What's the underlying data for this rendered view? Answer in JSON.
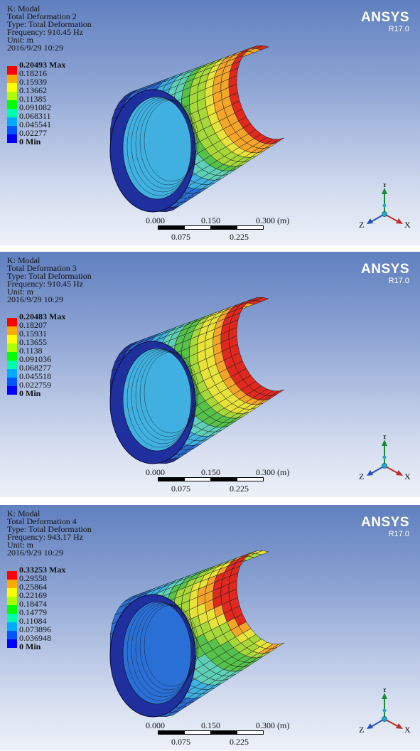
{
  "brand": "ANSYS",
  "release": "R17.0",
  "colors": {
    "legend": [
      "#0000ff",
      "#0055ff",
      "#00aaff",
      "#00ffaa",
      "#00ff00",
      "#aaff00",
      "#ffff00",
      "#ffaa00",
      "#ff0000"
    ],
    "background_top": "#5f7fbf",
    "background_bottom": "#edf1f8"
  },
  "scale_bar": {
    "ticks_top": [
      "0.000",
      "0.150",
      "0.300 (m)"
    ],
    "ticks_bottom": [
      "0.075",
      "0.225"
    ]
  },
  "triad": {
    "y": "Y",
    "z": "Z",
    "x": "X"
  },
  "panels": [
    {
      "analysis": "K: Modal",
      "result_name": "Total Deformation 2",
      "type": "Type: Total Deformation",
      "frequency": "Frequency: 910.45 Hz",
      "unit": "Unit: m",
      "date": "2016/9/29  10:29",
      "legend": [
        "0.20493  Max",
        "0.18216",
        "0.15939",
        "0.13662",
        "0.11385",
        "0.091082",
        "0.068311",
        "0.045541",
        "0.02277",
        "0  Min"
      ]
    },
    {
      "analysis": "K: Modal",
      "result_name": "Total Deformation 3",
      "type": "Type: Total Deformation",
      "frequency": "Frequency: 910.45 Hz",
      "unit": "Unit: m",
      "date": "2016/9/29  10:29",
      "legend": [
        "0.20483  Max",
        "0.18207",
        "0.15931",
        "0.13655",
        "0.1138",
        "0.091036",
        "0.068277",
        "0.045518",
        "0.022759",
        "0  Min"
      ]
    },
    {
      "analysis": "K: Modal",
      "result_name": "Total Deformation 4",
      "type": "Type: Total Deformation",
      "frequency": "Frequency: 943.17 Hz",
      "unit": "Unit: m",
      "date": "2016/9/29  10:29",
      "legend": [
        "0.33253  Max",
        "0.29558",
        "0.25864",
        "0.22169",
        "0.18474",
        "0.14779",
        "0.11084",
        "0.073896",
        "0.036948",
        "0  Min"
      ]
    }
  ]
}
